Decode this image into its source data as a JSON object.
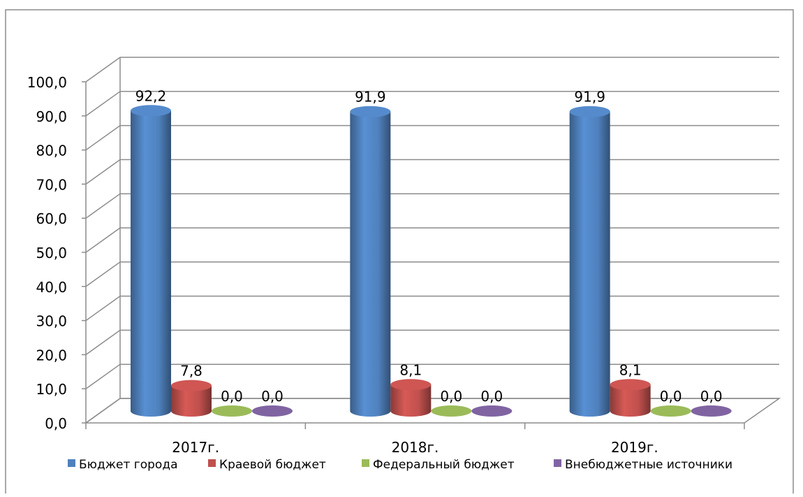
{
  "chart_data": {
    "type": "bar",
    "style": "3d-cylinder",
    "categories": [
      "2017г.",
      "2018г.",
      "2019г."
    ],
    "series": [
      {
        "name": "Бюджет города",
        "values": [
          92.2,
          91.9,
          91.9
        ],
        "labels": [
          "92,2",
          "91,9",
          "91,9"
        ],
        "color": "#4f81bd"
      },
      {
        "name": "Краевой бюджет",
        "values": [
          7.8,
          8.1,
          8.1
        ],
        "labels": [
          "7,8",
          "8,1",
          "8,1"
        ],
        "color": "#c0504d"
      },
      {
        "name": "Федеральный бюджет",
        "values": [
          0.0,
          0.0,
          0.0
        ],
        "labels": [
          "0,0",
          "0,0",
          "0,0"
        ],
        "color": "#9bbb59"
      },
      {
        "name": "Внебюджетные источники",
        "values": [
          0.0,
          0.0,
          0.0
        ],
        "labels": [
          "0,0",
          "0,0",
          "0,0"
        ],
        "color": "#8064a2"
      }
    ],
    "yticks": [
      "0,0",
      "10,0",
      "20,0",
      "30,0",
      "40,0",
      "50,0",
      "60,0",
      "70,0",
      "80,0",
      "90,0",
      "100,0"
    ],
    "ylim": [
      0,
      100
    ],
    "title": "",
    "xlabel": "",
    "ylabel": "",
    "grid": true,
    "legend": "bottom"
  }
}
